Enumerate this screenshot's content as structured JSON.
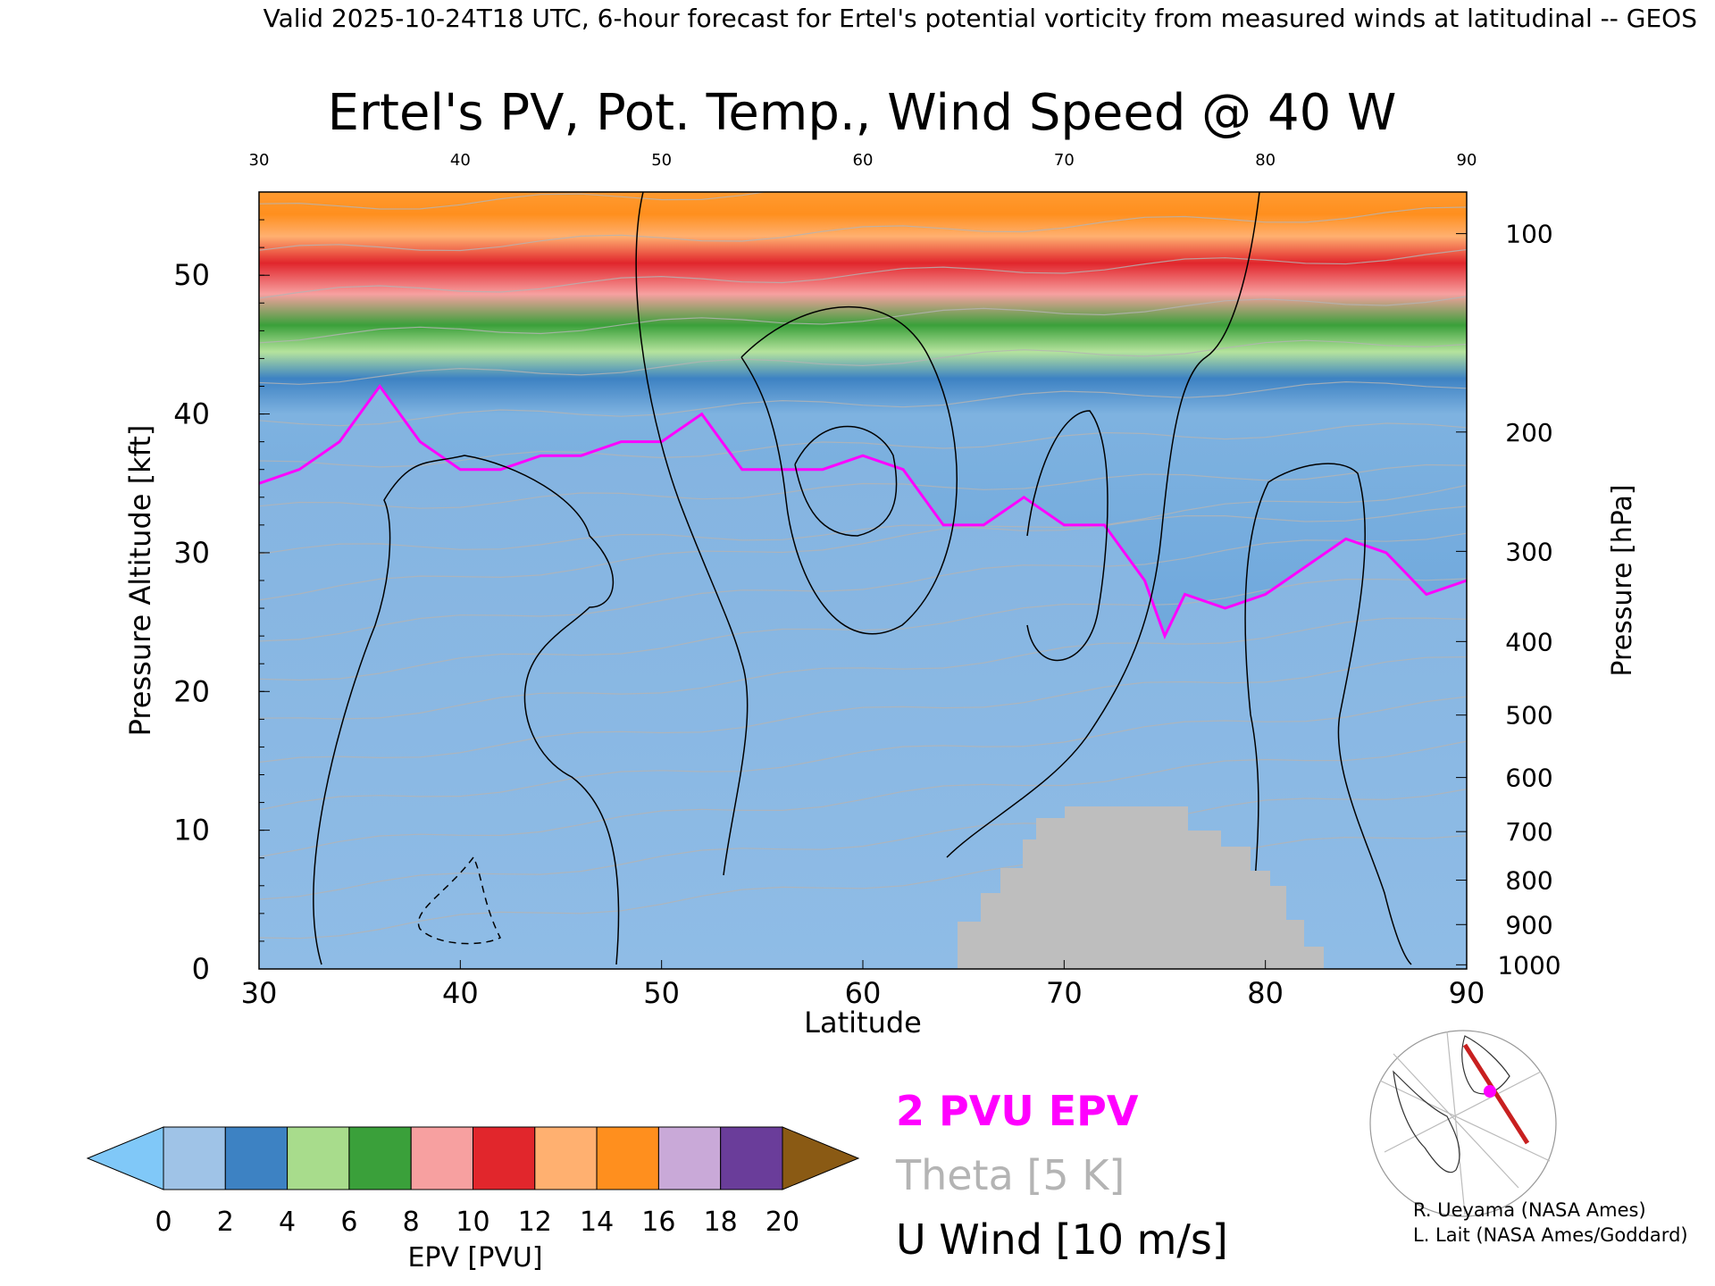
{
  "header": {
    "valid_line": "Valid 2025-10-24T18 UTC, 6-hour forecast for Ertel's potential vorticity from measured winds at latitudinal -- GEOS"
  },
  "chart_data": {
    "type": "heatmap",
    "title": "Ertel's PV, Pot. Temp., Wind Speed @ 40 W",
    "xlabel": "Latitude",
    "ylabel": "Pressure Altitude [kft]",
    "y2label": "Pressure [hPa]",
    "xlim": [
      30,
      90
    ],
    "ylim": [
      0,
      56
    ],
    "x_ticks": [
      30,
      40,
      50,
      60,
      70,
      80,
      90
    ],
    "y_ticks": [
      0,
      10,
      20,
      30,
      40,
      50
    ],
    "pressure_ticks": [
      {
        "label": "100",
        "kft": 53.0
      },
      {
        "label": "200",
        "kft": 38.7
      },
      {
        "label": "300",
        "kft": 30.1
      },
      {
        "label": "400",
        "kft": 23.6
      },
      {
        "label": "500",
        "kft": 18.3
      },
      {
        "label": "600",
        "kft": 13.8
      },
      {
        "label": "700",
        "kft": 9.9
      },
      {
        "label": "800",
        "kft": 6.4
      },
      {
        "label": "900",
        "kft": 3.2
      },
      {
        "label": "1000",
        "kft": 0.3
      }
    ],
    "tropopause_2pvu": {
      "lat": [
        30,
        32,
        34,
        36,
        38,
        40,
        42,
        44,
        46,
        48,
        50,
        52,
        54,
        56,
        58,
        60,
        62,
        64,
        66,
        68,
        70,
        72,
        74,
        75,
        76,
        78,
        80,
        82,
        84,
        86,
        88,
        90
      ],
      "kft": [
        35,
        36,
        38,
        42,
        38,
        36,
        36,
        37,
        37,
        38,
        38,
        40,
        36,
        36,
        36,
        37,
        36,
        32,
        32,
        34,
        32,
        32,
        28,
        24,
        27,
        26,
        27,
        29,
        31,
        30,
        27,
        28
      ]
    },
    "colorbar": {
      "label": "EPV [PVU]",
      "ticks": [
        "0",
        "2",
        "4",
        "6",
        "8",
        "10",
        "12",
        "14",
        "16",
        "18",
        "20"
      ],
      "colors": [
        "#9fc3e7",
        "#3d82c3",
        "#a8dc8c",
        "#3aa03a",
        "#f7a0a0",
        "#e1262c",
        "#ffb070",
        "#ff8f1e",
        "#c9a9d8",
        "#6a3d9a",
        "#fff49a"
      ],
      "under_color": "#80c8f8",
      "over_color": "#8a5a14"
    },
    "terrain_color": "#bebebe",
    "legend": [
      {
        "label": "2 PVU EPV",
        "color": "#ff00ff"
      },
      {
        "label": "Theta [5 K]",
        "color": "#b4b4b4"
      },
      {
        "label": "U Wind [10 m/s]",
        "color": "#000000"
      }
    ]
  },
  "credits": {
    "line1": "R. Ueyama (NASA Ames)",
    "line2": "L. Lait (NASA Ames/Goddard)"
  }
}
